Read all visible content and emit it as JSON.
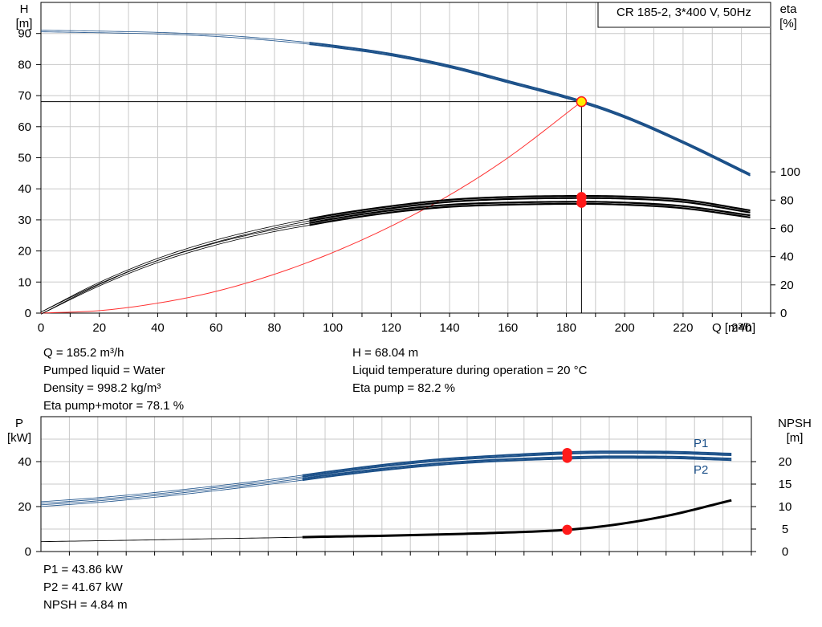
{
  "chart_data": [
    {
      "type": "line",
      "legend_box": "CR 185-2, 3*400 V, 50Hz",
      "xlabel": "Q [m³/h]",
      "xlim": [
        0,
        250
      ],
      "x_ticks": [
        "0",
        "20",
        "40",
        "60",
        "80",
        "100",
        "120",
        "140",
        "160",
        "180",
        "200",
        "220",
        "240"
      ],
      "y_left_label": [
        "H",
        "[m]"
      ],
      "y_left_lim": [
        0,
        100
      ],
      "y_left_ticks": [
        "0",
        "10",
        "20",
        "30",
        "40",
        "50",
        "60",
        "70",
        "80",
        "90"
      ],
      "y_right_label": [
        "eta",
        "[%]"
      ],
      "y_right_lim": [
        0,
        220
      ],
      "y_right_ticks": [
        "0",
        "20",
        "40",
        "60",
        "80",
        "100"
      ],
      "grid": true,
      "series": [
        {
          "name": "",
          "axis": "left",
          "color": "#1a4f88",
          "style": "head",
          "x": [
            0,
            20,
            40,
            60,
            80,
            92,
            100,
            120,
            140,
            160,
            185.2,
            200,
            220,
            243
          ],
          "y": [
            90.8,
            90.5,
            90.1,
            89.3,
            87.9,
            86.8,
            85.9,
            83.2,
            79.4,
            74.5,
            68.04,
            63.2,
            55.0,
            44.5
          ]
        },
        {
          "name": "",
          "axis": "right",
          "color": "#000000",
          "style": "eta",
          "x": [
            0,
            20,
            40,
            60,
            80,
            92,
            100,
            120,
            140,
            160,
            185.2,
            200,
            220,
            243
          ],
          "y": [
            0,
            21,
            38,
            51,
            61,
            66,
            69,
            75,
            79.5,
            81.5,
            82.2,
            81.8,
            79.5,
            72
          ]
        },
        {
          "name": "",
          "axis": "right",
          "color": "#000000",
          "style": "eta",
          "x": [
            0,
            20,
            40,
            60,
            80,
            92,
            100,
            120,
            140,
            160,
            185.2,
            200,
            220,
            243
          ],
          "y": [
            0,
            20,
            36.5,
            49,
            58.5,
            63,
            66,
            72,
            76,
            77.5,
            78.1,
            77.5,
            75,
            68.5
          ]
        },
        {
          "name": "",
          "axis": "left",
          "color": "#ff3030",
          "style": "thin",
          "x": [
            0,
            20,
            40,
            60,
            80,
            100,
            120,
            140,
            160,
            185.2
          ],
          "y": [
            0,
            0.8,
            3.2,
            7,
            12.5,
            19.5,
            28,
            38,
            50,
            68.04
          ]
        }
      ],
      "operating_point": {
        "q": 185.2,
        "h": 68.04,
        "eta_pump": 82.2,
        "eta_pump_motor": 78.1
      }
    },
    {
      "type": "line",
      "xlim": [
        0,
        250
      ],
      "y_left_label": [
        "P",
        "[kW]"
      ],
      "y_left_lim": [
        0,
        60
      ],
      "y_left_ticks": [
        "0",
        "20",
        "40"
      ],
      "y_right_label": [
        "NPSH",
        "[m]"
      ],
      "y_right_lim": [
        0,
        30
      ],
      "y_right_ticks": [
        "0",
        "5",
        "10",
        "15",
        "20"
      ],
      "grid": true,
      "series": [
        {
          "name": "P1",
          "axis": "left",
          "color": "#1a4f88",
          "style": "power",
          "x": [
            0,
            20,
            40,
            60,
            80,
            92,
            100,
            120,
            140,
            160,
            185.2,
            200,
            220,
            243
          ],
          "y": [
            21.8,
            23.6,
            25.9,
            28.6,
            31.6,
            33.6,
            35,
            38.2,
            40.7,
            42.3,
            43.86,
            44.2,
            44.1,
            43.2
          ]
        },
        {
          "name": "P2",
          "axis": "left",
          "color": "#1a4f88",
          "style": "power",
          "x": [
            0,
            20,
            40,
            60,
            80,
            92,
            100,
            120,
            140,
            160,
            185.2,
            200,
            220,
            243
          ],
          "y": [
            20.4,
            22.2,
            24.5,
            27.2,
            30.2,
            32.1,
            33.5,
            36.5,
            38.9,
            40.5,
            41.67,
            42,
            41.9,
            41
          ]
        },
        {
          "name": "",
          "axis": "right",
          "color": "#000000",
          "style": "npsh",
          "x": [
            0,
            20,
            40,
            60,
            80,
            92,
            100,
            120,
            140,
            160,
            185.2,
            200,
            220,
            243
          ],
          "y": [
            2.2,
            2.4,
            2.6,
            2.85,
            3.05,
            3.2,
            3.3,
            3.5,
            3.8,
            4.15,
            4.84,
            5.8,
            7.9,
            11.4
          ]
        }
      ],
      "operating_point": {
        "q": 185.2,
        "p1": 43.86,
        "p2": 41.67,
        "npsh": 4.84
      }
    }
  ],
  "info_top_left": [
    "Q = 185.2 m³/h",
    "Pumped liquid = Water",
    "Density = 998.2 kg/m³",
    "Eta pump+motor = 78.1 %"
  ],
  "info_top_right": [
    "H = 68.04 m",
    "Liquid temperature during operation = 20 °C",
    "Eta pump = 82.2 %"
  ],
  "info_bottom": [
    "P1 = 43.86 kW",
    "P2 = 41.67 kW",
    "NPSH = 4.84 m"
  ]
}
